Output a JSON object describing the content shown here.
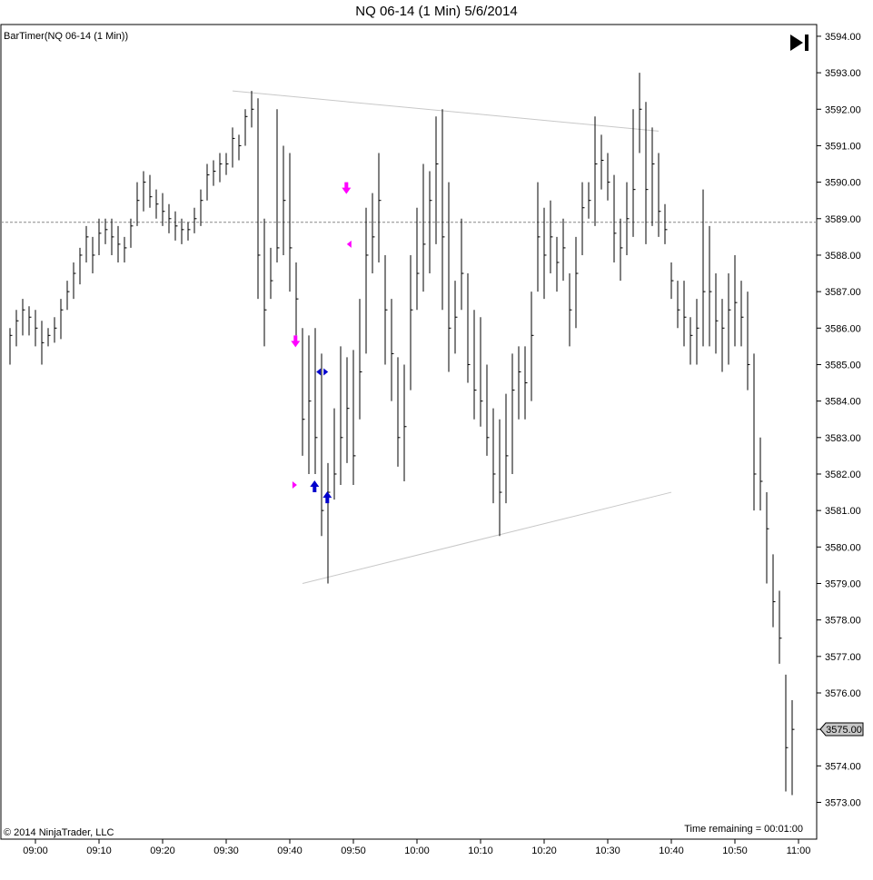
{
  "chart_data": {
    "type": "ohlc",
    "title": "NQ 06-14 (1 Min)  5/6/2014",
    "indicator_label": "BarTimer(NQ 06-14 (1 Min))",
    "copyright": "© 2014 NinjaTrader, LLC",
    "time_remaining_text": "Time remaining = 00:01:00",
    "last_price_label": "3575.00",
    "ylim": [
      3572.3,
      3594.7
    ],
    "y_ticks": [
      "3573.00",
      "3574.00",
      "3575.00",
      "3576.00",
      "3577.00",
      "3578.00",
      "3579.00",
      "3580.00",
      "3581.00",
      "3582.00",
      "3583.00",
      "3584.00",
      "3585.00",
      "3586.00",
      "3587.00",
      "3588.00",
      "3589.00",
      "3590.00",
      "3591.00",
      "3592.00",
      "3593.00",
      "3594.00"
    ],
    "x_ticks": [
      {
        "label": "09:00",
        "minute": 0
      },
      {
        "label": "09:10",
        "minute": 10
      },
      {
        "label": "09:20",
        "minute": 20
      },
      {
        "label": "09:30",
        "minute": 30
      },
      {
        "label": "09:40",
        "minute": 40
      },
      {
        "label": "09:50",
        "minute": 50
      },
      {
        "label": "10:00",
        "minute": 60
      },
      {
        "label": "10:10",
        "minute": 70
      },
      {
        "label": "10:20",
        "minute": 80
      },
      {
        "label": "10:30",
        "minute": 90
      },
      {
        "label": "10:40",
        "minute": 100
      },
      {
        "label": "10:50",
        "minute": 110
      },
      {
        "label": "11:00",
        "minute": 120
      }
    ],
    "bar_minutes": [
      -4,
      122
    ],
    "horizontal_line": 3588.9,
    "trendlines": [
      {
        "from": [
          31,
          3592.5
        ],
        "to": [
          98,
          3591.4
        ]
      },
      {
        "from": [
          42,
          3579.0
        ],
        "to": [
          100,
          3581.5
        ]
      }
    ],
    "markers": [
      {
        "type": "arrow-down",
        "color": "#ff00ff",
        "minute": 40.9,
        "price": 3585.6
      },
      {
        "type": "arrow-down",
        "color": "#ff00ff",
        "minute": 48.9,
        "price": 3589.8
      },
      {
        "type": "tri-right",
        "color": "#ff00ff",
        "minute": 40.7,
        "price": 3581.7
      },
      {
        "type": "tri-left",
        "color": "#ff00ff",
        "minute": 49.4,
        "price": 3588.3
      },
      {
        "type": "arrow-up",
        "color": "#0000cc",
        "minute": 43.9,
        "price": 3581.7
      },
      {
        "type": "arrow-up",
        "color": "#0000cc",
        "minute": 45.9,
        "price": 3581.4
      },
      {
        "type": "tri-left",
        "color": "#0000cc",
        "minute": 44.6,
        "price": 3584.8
      },
      {
        "type": "tri-right",
        "color": "#0000cc",
        "minute": 45.6,
        "price": 3584.8
      }
    ],
    "bars_hlc": [
      [
        3586.0,
        3585.0,
        3585.8
      ],
      [
        3586.5,
        3585.5,
        3586.2
      ],
      [
        3586.8,
        3585.8,
        3586.5
      ],
      [
        3586.6,
        3585.8,
        3586.3
      ],
      [
        3586.5,
        3585.5,
        3586.0
      ],
      [
        3586.2,
        3585.0,
        3585.6
      ],
      [
        3586.0,
        3585.5,
        3585.8
      ],
      [
        3586.3,
        3585.6,
        3586.0
      ],
      [
        3586.8,
        3585.7,
        3586.5
      ],
      [
        3587.3,
        3586.5,
        3587.0
      ],
      [
        3587.8,
        3586.8,
        3587.5
      ],
      [
        3588.2,
        3587.2,
        3588.0
      ],
      [
        3588.8,
        3587.8,
        3588.5
      ],
      [
        3588.5,
        3587.5,
        3588.0
      ],
      [
        3589.0,
        3588.0,
        3588.6
      ],
      [
        3589.0,
        3588.3,
        3588.7
      ],
      [
        3589.0,
        3588.0,
        3588.5
      ],
      [
        3588.8,
        3587.8,
        3588.3
      ],
      [
        3588.5,
        3587.8,
        3588.2
      ],
      [
        3589.0,
        3588.2,
        3588.8
      ],
      [
        3590.0,
        3588.8,
        3589.5
      ],
      [
        3590.3,
        3589.2,
        3590.0
      ],
      [
        3590.2,
        3589.3,
        3589.6
      ],
      [
        3589.8,
        3589.0,
        3589.4
      ],
      [
        3589.7,
        3588.8,
        3589.2
      ],
      [
        3589.4,
        3588.6,
        3589.0
      ],
      [
        3589.2,
        3588.4,
        3588.8
      ],
      [
        3589.0,
        3588.3,
        3588.7
      ],
      [
        3588.9,
        3588.4,
        3588.7
      ],
      [
        3589.3,
        3588.6,
        3589.0
      ],
      [
        3589.8,
        3588.8,
        3589.5
      ],
      [
        3590.5,
        3589.5,
        3590.2
      ],
      [
        3590.6,
        3589.9,
        3590.3
      ],
      [
        3590.8,
        3590.0,
        3590.5
      ],
      [
        3590.8,
        3590.2,
        3590.5
      ],
      [
        3591.5,
        3590.4,
        3591.2
      ],
      [
        3591.3,
        3590.6,
        3591.0
      ],
      [
        3592.0,
        3591.0,
        3591.8
      ],
      [
        3592.5,
        3591.5,
        3592.0
      ],
      [
        3592.3,
        3586.8,
        3588.0
      ],
      [
        3589.0,
        3585.5,
        3586.5
      ],
      [
        3588.2,
        3586.8,
        3587.3
      ],
      [
        3592.0,
        3587.8,
        3588.2
      ],
      [
        3591.0,
        3588.0,
        3589.5
      ],
      [
        3590.8,
        3587.0,
        3588.2
      ],
      [
        3587.8,
        3585.8,
        3586.8
      ],
      [
        3586.0,
        3582.5,
        3583.5
      ],
      [
        3585.8,
        3582.0,
        3584.0
      ],
      [
        3586.0,
        3582.0,
        3583.0
      ],
      [
        3585.3,
        3580.3,
        3581.0
      ],
      [
        3582.3,
        3579.0,
        3581.5
      ],
      [
        3583.8,
        3581.3,
        3582.0
      ],
      [
        3585.5,
        3581.7,
        3583.0
      ],
      [
        3585.2,
        3582.3,
        3583.8
      ],
      [
        3585.4,
        3581.7,
        3582.5
      ],
      [
        3586.8,
        3583.5,
        3584.8
      ],
      [
        3589.3,
        3585.3,
        3588.0
      ],
      [
        3589.7,
        3587.5,
        3588.5
      ],
      [
        3590.8,
        3587.8,
        3589.5
      ],
      [
        3588.0,
        3585.0,
        3586.5
      ],
      [
        3586.8,
        3584.0,
        3585.3
      ],
      [
        3585.2,
        3582.2,
        3583.0
      ],
      [
        3585.0,
        3581.8,
        3583.3
      ],
      [
        3588.0,
        3584.3,
        3586.5
      ],
      [
        3589.3,
        3586.5,
        3587.5
      ],
      [
        3590.5,
        3587.0,
        3588.3
      ],
      [
        3590.3,
        3587.5,
        3589.5
      ],
      [
        3591.8,
        3588.3,
        3590.5
      ],
      [
        3592.0,
        3586.5,
        3588.5
      ],
      [
        3590.0,
        3584.8,
        3586.0
      ],
      [
        3587.3,
        3585.3,
        3586.3
      ],
      [
        3589.0,
        3586.5,
        3587.5
      ],
      [
        3587.5,
        3584.5,
        3585.0
      ],
      [
        3586.5,
        3583.5,
        3584.3
      ],
      [
        3586.3,
        3583.3,
        3584.0
      ],
      [
        3585.0,
        3582.5,
        3583.0
      ],
      [
        3583.8,
        3581.2,
        3582.0
      ],
      [
        3583.5,
        3580.3,
        3581.5
      ],
      [
        3584.2,
        3581.2,
        3582.5
      ],
      [
        3585.3,
        3582.0,
        3584.3
      ],
      [
        3585.5,
        3583.5,
        3584.8
      ],
      [
        3585.5,
        3583.5,
        3584.5
      ],
      [
        3587.0,
        3584.0,
        3585.8
      ],
      [
        3590.0,
        3587.0,
        3588.5
      ],
      [
        3589.3,
        3586.8,
        3588.0
      ],
      [
        3589.5,
        3587.5,
        3588.5
      ],
      [
        3588.5,
        3587.0,
        3587.8
      ],
      [
        3589.0,
        3587.3,
        3588.2
      ],
      [
        3587.5,
        3585.5,
        3586.5
      ],
      [
        3588.5,
        3586.0,
        3587.5
      ],
      [
        3590.0,
        3588.0,
        3589.3
      ],
      [
        3590.0,
        3589.0,
        3589.5
      ],
      [
        3591.8,
        3588.8,
        3590.5
      ],
      [
        3591.3,
        3589.8,
        3590.6
      ],
      [
        3590.8,
        3589.5,
        3590.0
      ],
      [
        3590.2,
        3587.8,
        3588.6
      ],
      [
        3589.0,
        3587.3,
        3588.2
      ],
      [
        3590.0,
        3588.0,
        3589.0
      ],
      [
        3592.0,
        3588.5,
        3589.8
      ],
      [
        3593.0,
        3590.8,
        3592.0
      ],
      [
        3592.2,
        3588.3,
        3589.8
      ],
      [
        3591.5,
        3588.8,
        3590.5
      ],
      [
        3590.8,
        3588.5,
        3589.2
      ],
      [
        3589.4,
        3588.3,
        3588.7
      ],
      [
        3587.8,
        3586.8,
        3587.3
      ],
      [
        3587.3,
        3586.0,
        3586.5
      ],
      [
        3587.3,
        3585.5,
        3586.3
      ],
      [
        3586.3,
        3585.0,
        3585.8
      ],
      [
        3586.8,
        3585.0,
        3586.0
      ],
      [
        3589.8,
        3585.5,
        3587.0
      ],
      [
        3588.8,
        3585.5,
        3587.0
      ],
      [
        3587.5,
        3585.3,
        3586.2
      ],
      [
        3586.8,
        3584.8,
        3586.0
      ],
      [
        3587.5,
        3585.0,
        3586.5
      ],
      [
        3588.0,
        3585.5,
        3586.7
      ],
      [
        3587.3,
        3585.5,
        3586.3
      ],
      [
        3587.0,
        3584.3,
        3585.0
      ],
      [
        3585.3,
        3581.0,
        3582.0
      ],
      [
        3583.0,
        3581.0,
        3581.8
      ],
      [
        3581.5,
        3579.0,
        3580.5
      ],
      [
        3579.8,
        3577.8,
        3578.5
      ],
      [
        3578.8,
        3576.8,
        3577.5
      ],
      [
        3576.5,
        3573.3,
        3574.5
      ],
      [
        3575.8,
        3573.2,
        3575.0
      ]
    ]
  }
}
